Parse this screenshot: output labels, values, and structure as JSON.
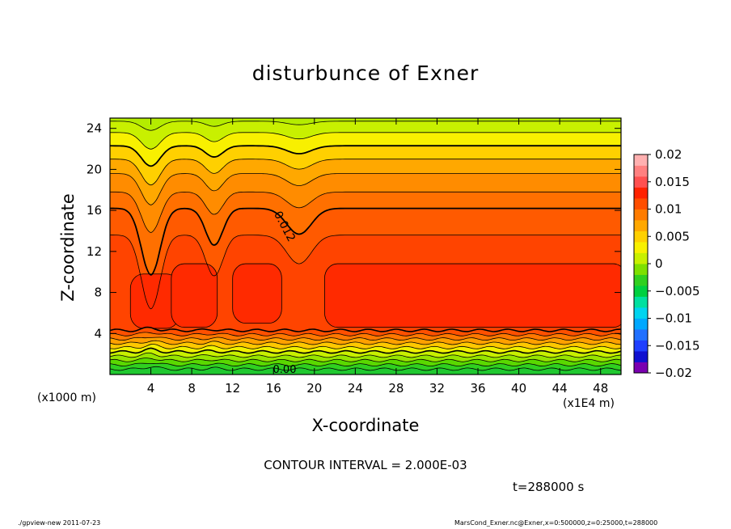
{
  "title": "disturbunce of Exner",
  "chart_data": {
    "type": "heatmap",
    "title": "disturbunce of Exner",
    "xlabel": "X-coordinate",
    "ylabel": "Z-coordinate",
    "x_unit": "(x1E4 m)",
    "y_unit": "(x1000 m)",
    "xlim": [
      0,
      50
    ],
    "ylim": [
      0,
      25
    ],
    "x_ticks": [
      4,
      8,
      12,
      16,
      20,
      24,
      28,
      32,
      36,
      40,
      44,
      48
    ],
    "y_ticks": [
      4,
      8,
      12,
      16,
      20,
      24
    ],
    "colorbar": {
      "min": -0.02,
      "max": 0.02,
      "tick_labels": [
        "0.02",
        "0.015",
        "0.01",
        "0.005",
        "0",
        "−0.005",
        "−0.01",
        "−0.015",
        "−0.02"
      ],
      "colors": [
        "#7a00b0",
        "#1010d0",
        "#1f3fff",
        "#2070ff",
        "#00a8ff",
        "#00d4f0",
        "#00e0a0",
        "#00d040",
        "#30d020",
        "#7ee000",
        "#c8f000",
        "#f8f000",
        "#ffd000",
        "#ffa800",
        "#ff7c00",
        "#ff4e00",
        "#ff2200",
        "#ff5050",
        "#ff8080",
        "#ffb0b0"
      ]
    },
    "contour_labels": [
      "0.012",
      "0.00"
    ],
    "contour_interval_text": "CONTOUR INTERVAL = 2.000E-03",
    "time_text": "t=288000 s"
  },
  "footer": {
    "left": "./gpview-new   2011-07-23",
    "right": "MarsCond_Exner.nc@Exner,x=0:500000,z=0:25000,t=288000"
  }
}
